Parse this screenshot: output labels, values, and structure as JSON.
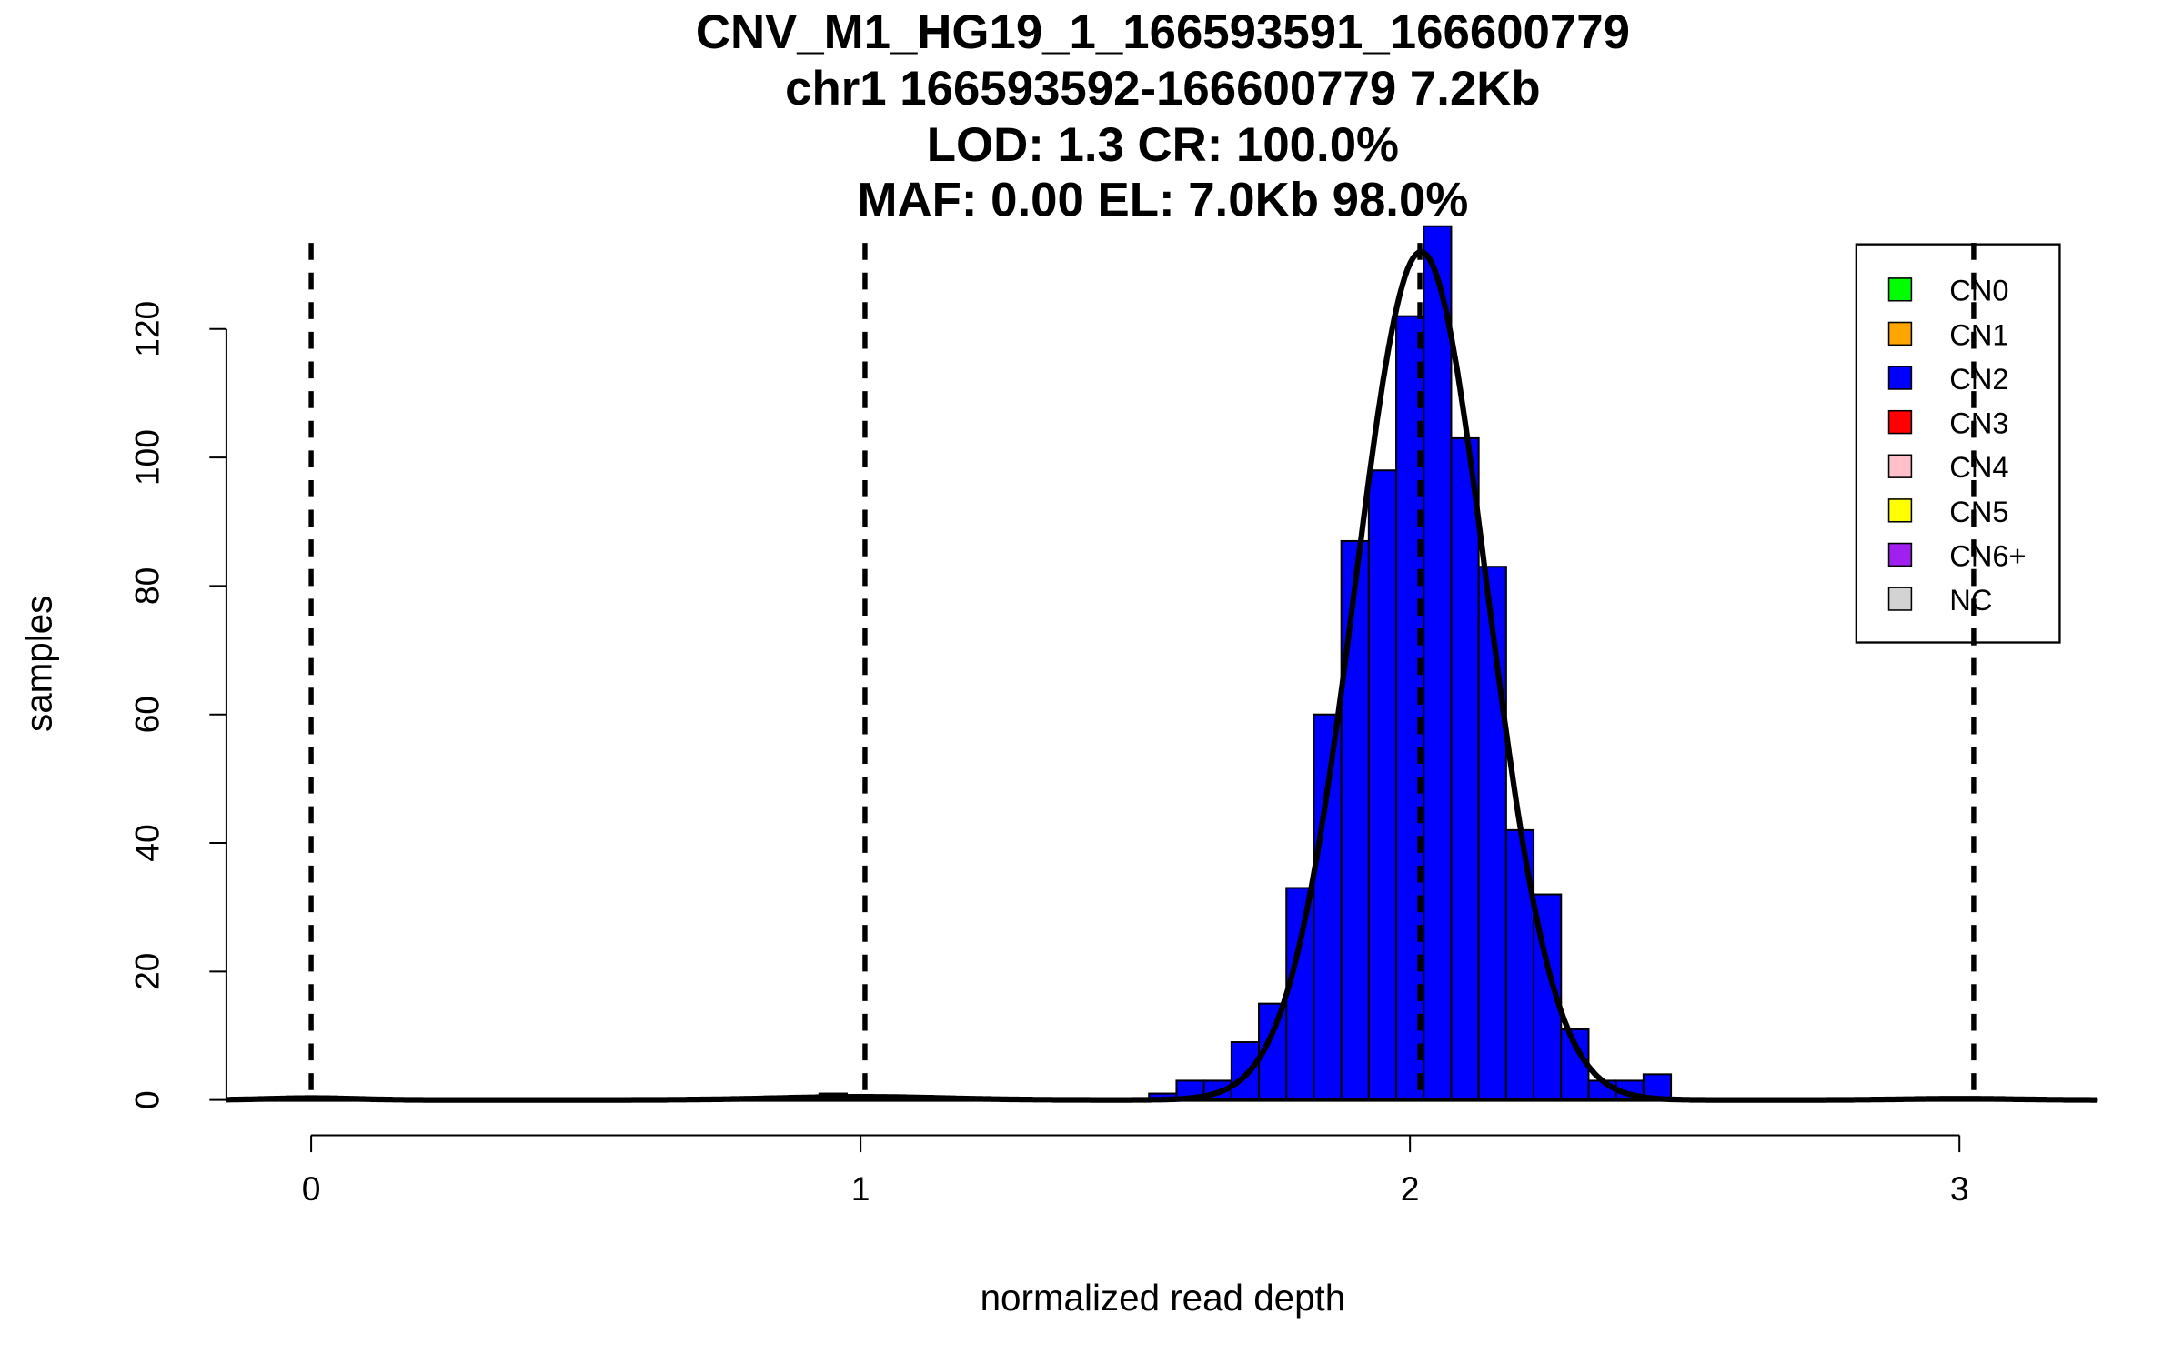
{
  "chart_data": {
    "type": "bar",
    "title_lines": [
      "CNV_M1_HG19_1_166593591_166600779",
      "chr1 166593592-166600779 7.2Kb",
      "LOD: 1.3 CR: 100.0%",
      "MAF: 0.00 EL: 7.0Kb 98.0%"
    ],
    "xlabel": "normalized read depth",
    "ylabel": "samples",
    "xlim": [
      -0.154,
      3.252
    ],
    "ylim": [
      0,
      136
    ],
    "xticks": [
      0,
      1,
      2,
      3
    ],
    "yticks": [
      0,
      20,
      40,
      60,
      80,
      100,
      120
    ],
    "bin_width": 0.05,
    "bins": [
      {
        "start": 0.925,
        "count": 1,
        "class": "CN2"
      },
      {
        "start": 1.525,
        "count": 1,
        "class": "CN2"
      },
      {
        "start": 1.575,
        "count": 3,
        "class": "CN2"
      },
      {
        "start": 1.625,
        "count": 3,
        "class": "CN2"
      },
      {
        "start": 1.675,
        "count": 9,
        "class": "CN2"
      },
      {
        "start": 1.725,
        "count": 15,
        "class": "CN2"
      },
      {
        "start": 1.775,
        "count": 33,
        "class": "CN2"
      },
      {
        "start": 1.825,
        "count": 60,
        "class": "CN2"
      },
      {
        "start": 1.875,
        "count": 87,
        "class": "CN2"
      },
      {
        "start": 1.925,
        "count": 98,
        "class": "CN2"
      },
      {
        "start": 1.975,
        "count": 122,
        "class": "CN2"
      },
      {
        "start": 2.025,
        "count": 136,
        "class": "CN2"
      },
      {
        "start": 2.075,
        "count": 103,
        "class": "CN2"
      },
      {
        "start": 2.125,
        "count": 83,
        "class": "CN2"
      },
      {
        "start": 2.175,
        "count": 42,
        "class": "CN2"
      },
      {
        "start": 2.225,
        "count": 32,
        "class": "CN2"
      },
      {
        "start": 2.275,
        "count": 11,
        "class": "CN2"
      },
      {
        "start": 2.325,
        "count": 3,
        "class": "CN2"
      },
      {
        "start": 2.375,
        "count": 3,
        "class": "CN2"
      },
      {
        "start": 2.425,
        "count": 4,
        "class": "CN2"
      }
    ],
    "fit_components": [
      {
        "mean": 0.0,
        "sd": 0.08,
        "peak": 0.3
      },
      {
        "mean": 1.0,
        "sd": 0.15,
        "peak": 0.5
      },
      {
        "mean": 2.02,
        "sd": 0.12,
        "peak": 132
      },
      {
        "mean": 3.0,
        "sd": 0.1,
        "peak": 0.2
      }
    ],
    "dashed_lines": [
      0,
      1.008,
      2.018,
      3.026
    ],
    "legend": {
      "position": "top-right",
      "entries": [
        {
          "label": "CN0",
          "color": "#00ff00"
        },
        {
          "label": "CN1",
          "color": "#ffa500"
        },
        {
          "label": "CN2",
          "color": "#0000ff"
        },
        {
          "label": "CN3",
          "color": "#ff0000"
        },
        {
          "label": "CN4",
          "color": "#ffc0cb"
        },
        {
          "label": "CN5",
          "color": "#ffff00"
        },
        {
          "label": "CN6+",
          "color": "#a020f0"
        },
        {
          "label": "NC",
          "color": "#d3d3d3"
        }
      ]
    }
  }
}
